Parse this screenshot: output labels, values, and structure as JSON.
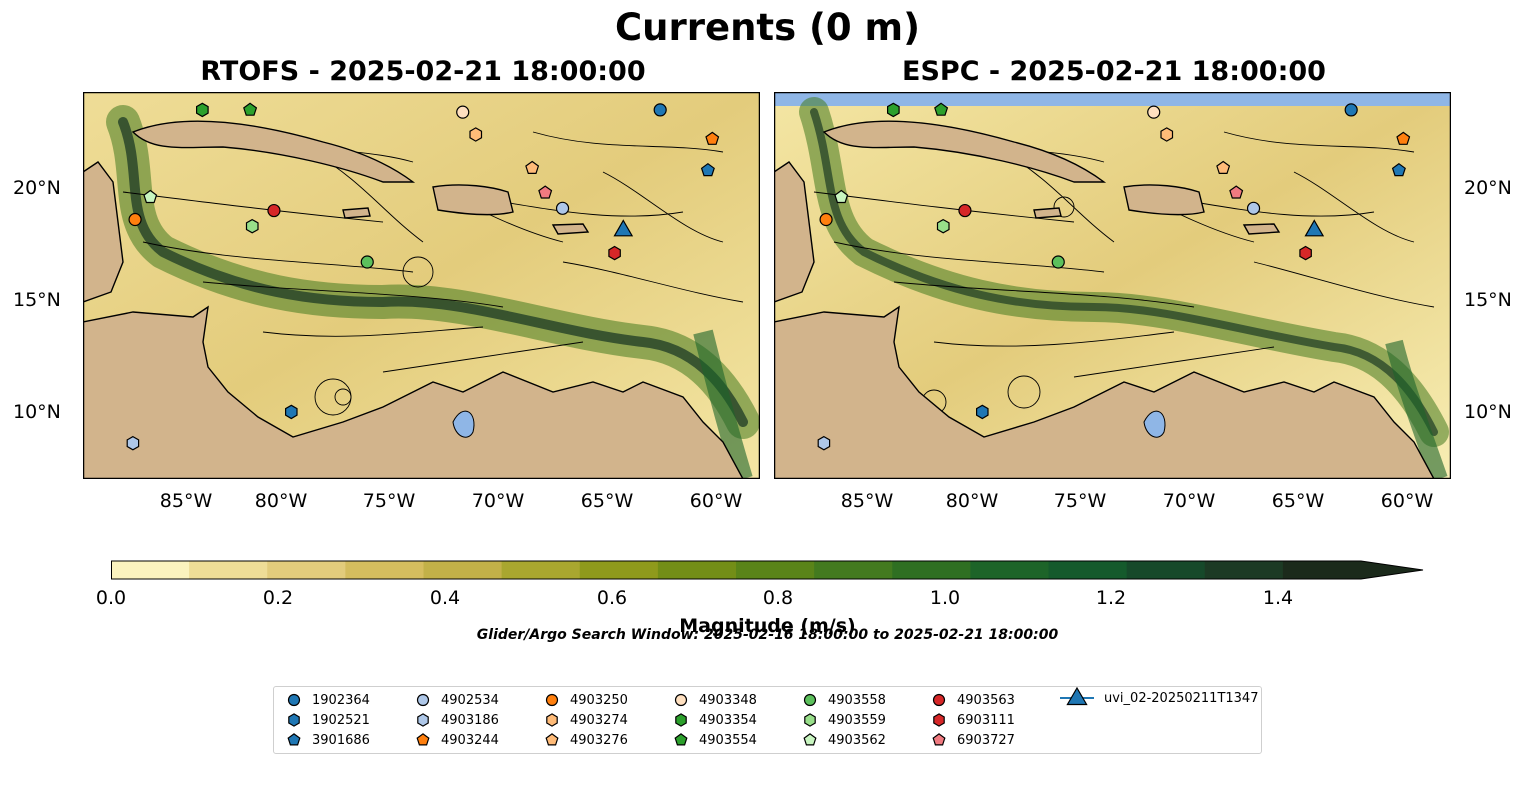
{
  "figure": {
    "title": "Currents (0 m)",
    "panels": [
      {
        "title": "RTOFS - 2025-02-21 18:00:00"
      },
      {
        "title": "ESPC - 2025-02-21 18:00:00"
      }
    ],
    "lon_ticks": [
      "85°W",
      "80°W",
      "75°W",
      "70°W",
      "65°W",
      "60°W"
    ],
    "lat_ticks": [
      "20°N",
      "15°N",
      "10°N"
    ],
    "lon_range": [
      -89.6,
      -58.4
    ],
    "lat_range": [
      7.1,
      24.4
    ]
  },
  "colorbar": {
    "label": "Magnitude (m/s)",
    "ticks": [
      "0.0",
      "0.2",
      "0.4",
      "0.6",
      "0.8",
      "1.0",
      "1.2",
      "1.4"
    ],
    "range": [
      0.0,
      1.5
    ],
    "extend": "max",
    "colors": [
      "#fbf3bf",
      "#efdd97",
      "#e3cc7c",
      "#d5bd5e",
      "#c2b148",
      "#a9a72f",
      "#8f9a1c",
      "#738e17",
      "#5a8419",
      "#437a1f",
      "#2f6f22",
      "#1d6429",
      "#155a2c",
      "#16492a",
      "#1c3a24",
      "#1b2a1b"
    ]
  },
  "search_window": "Glider/Argo Search Window: 2025-02-16 18:00:00 to 2025-02-21 18:00:00",
  "legend": {
    "items": [
      {
        "label": "1902364",
        "marker": "circle",
        "color": "#1f77b4"
      },
      {
        "label": "1902521",
        "marker": "hexagon",
        "color": "#1f77b4"
      },
      {
        "label": "3901686",
        "marker": "pentagon",
        "color": "#1f77b4"
      },
      {
        "label": "4902534",
        "marker": "circle",
        "color": "#aec7e8"
      },
      {
        "label": "4903186",
        "marker": "hexagon",
        "color": "#aec7e8"
      },
      {
        "label": "4903244",
        "marker": "pentagon",
        "color": "#ff7f0e"
      },
      {
        "label": "4903250",
        "marker": "circle",
        "color": "#ff7f0e"
      },
      {
        "label": "4903274",
        "marker": "hexagon",
        "color": "#ffbb78"
      },
      {
        "label": "4903276",
        "marker": "pentagon",
        "color": "#ffbb78"
      },
      {
        "label": "4903348",
        "marker": "circle",
        "color": "#ffe0c0"
      },
      {
        "label": "4903354",
        "marker": "hexagon",
        "color": "#2ca02c"
      },
      {
        "label": "4903554",
        "marker": "pentagon",
        "color": "#2ca02c"
      },
      {
        "label": "4903558",
        "marker": "circle",
        "color": "#5cc05c"
      },
      {
        "label": "4903559",
        "marker": "hexagon",
        "color": "#98df8a"
      },
      {
        "label": "4903562",
        "marker": "pentagon",
        "color": "#c8f5c0"
      },
      {
        "label": "4903563",
        "marker": "circle",
        "color": "#d62728"
      },
      {
        "label": "6903111",
        "marker": "hexagon",
        "color": "#d62728"
      },
      {
        "label": "6903727",
        "marker": "pentagon",
        "color": "#f07a80"
      },
      {
        "label": "uvi_02-20250211T1347",
        "marker": "triangle",
        "color": "#1f77b4"
      }
    ]
  },
  "floats": [
    {
      "id": "1902364",
      "lon": -63.0,
      "lat": 23.6
    },
    {
      "id": "1902521",
      "lon": -80.0,
      "lat": 10.1
    },
    {
      "id": "3901686",
      "lon": -60.8,
      "lat": 20.9
    },
    {
      "id": "4902534",
      "lon": -67.5,
      "lat": 19.2
    },
    {
      "id": "4903186",
      "lon": -87.3,
      "lat": 8.7
    },
    {
      "id": "4903244",
      "lon": -60.6,
      "lat": 22.3
    },
    {
      "id": "4903250",
      "lon": -87.2,
      "lat": 18.7
    },
    {
      "id": "4903274",
      "lon": -71.5,
      "lat": 22.5
    },
    {
      "id": "4903276",
      "lon": -68.9,
      "lat": 21.0
    },
    {
      "id": "4903348",
      "lon": -72.1,
      "lat": 23.5
    },
    {
      "id": "4903354",
      "lon": -84.1,
      "lat": 23.6
    },
    {
      "id": "4903554",
      "lon": -81.9,
      "lat": 23.6
    },
    {
      "id": "4903558",
      "lon": -76.5,
      "lat": 16.8
    },
    {
      "id": "4903559",
      "lon": -81.8,
      "lat": 18.4
    },
    {
      "id": "4903562",
      "lon": -86.5,
      "lat": 19.7
    },
    {
      "id": "4903563",
      "lon": -80.8,
      "lat": 19.1
    },
    {
      "id": "6903111",
      "lon": -65.1,
      "lat": 17.2
    },
    {
      "id": "6903727",
      "lon": -68.3,
      "lat": 19.9
    },
    {
      "id": "uvi_02-20250211T1347",
      "lon": -64.7,
      "lat": 18.2
    }
  ]
}
